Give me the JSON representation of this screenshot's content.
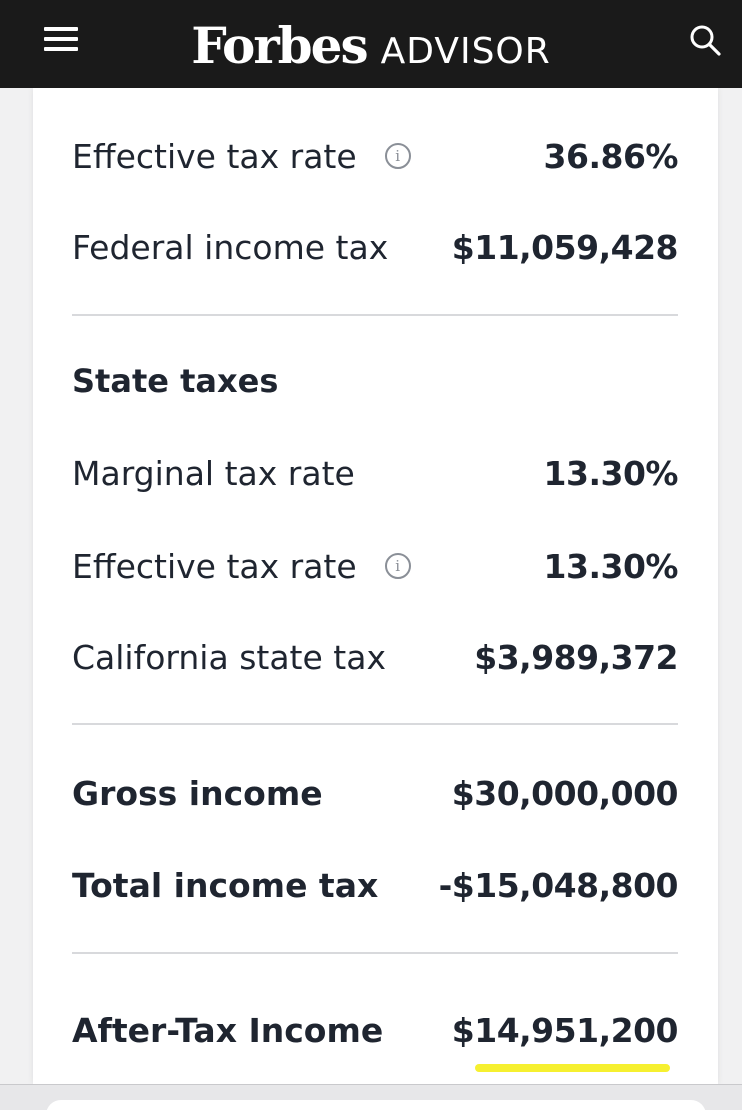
{
  "header": {
    "brand": "Forbes",
    "sub_brand": "ADVISOR"
  },
  "federal": {
    "effective_rate_label": "Effective tax rate",
    "effective_rate_value": "36.86%",
    "income_tax_label": "Federal income tax",
    "income_tax_value": "$11,059,428"
  },
  "state": {
    "section_title": "State taxes",
    "marginal_rate_label": "Marginal tax rate",
    "marginal_rate_value": "13.30%",
    "effective_rate_label": "Effective tax rate",
    "effective_rate_value": "13.30%",
    "state_tax_label": "California state tax",
    "state_tax_value": "$3,989,372"
  },
  "summary": {
    "gross_label": "Gross income",
    "gross_value": "$30,000,000",
    "total_tax_label": "Total income tax",
    "total_tax_value": "-$15,048,800",
    "after_tax_label": "After-Tax Income",
    "after_tax_value": "$14,951,200"
  },
  "colors": {
    "header_bg": "#1a1a1a",
    "highlight": "#f5ee1a",
    "text": "#1f2530"
  }
}
